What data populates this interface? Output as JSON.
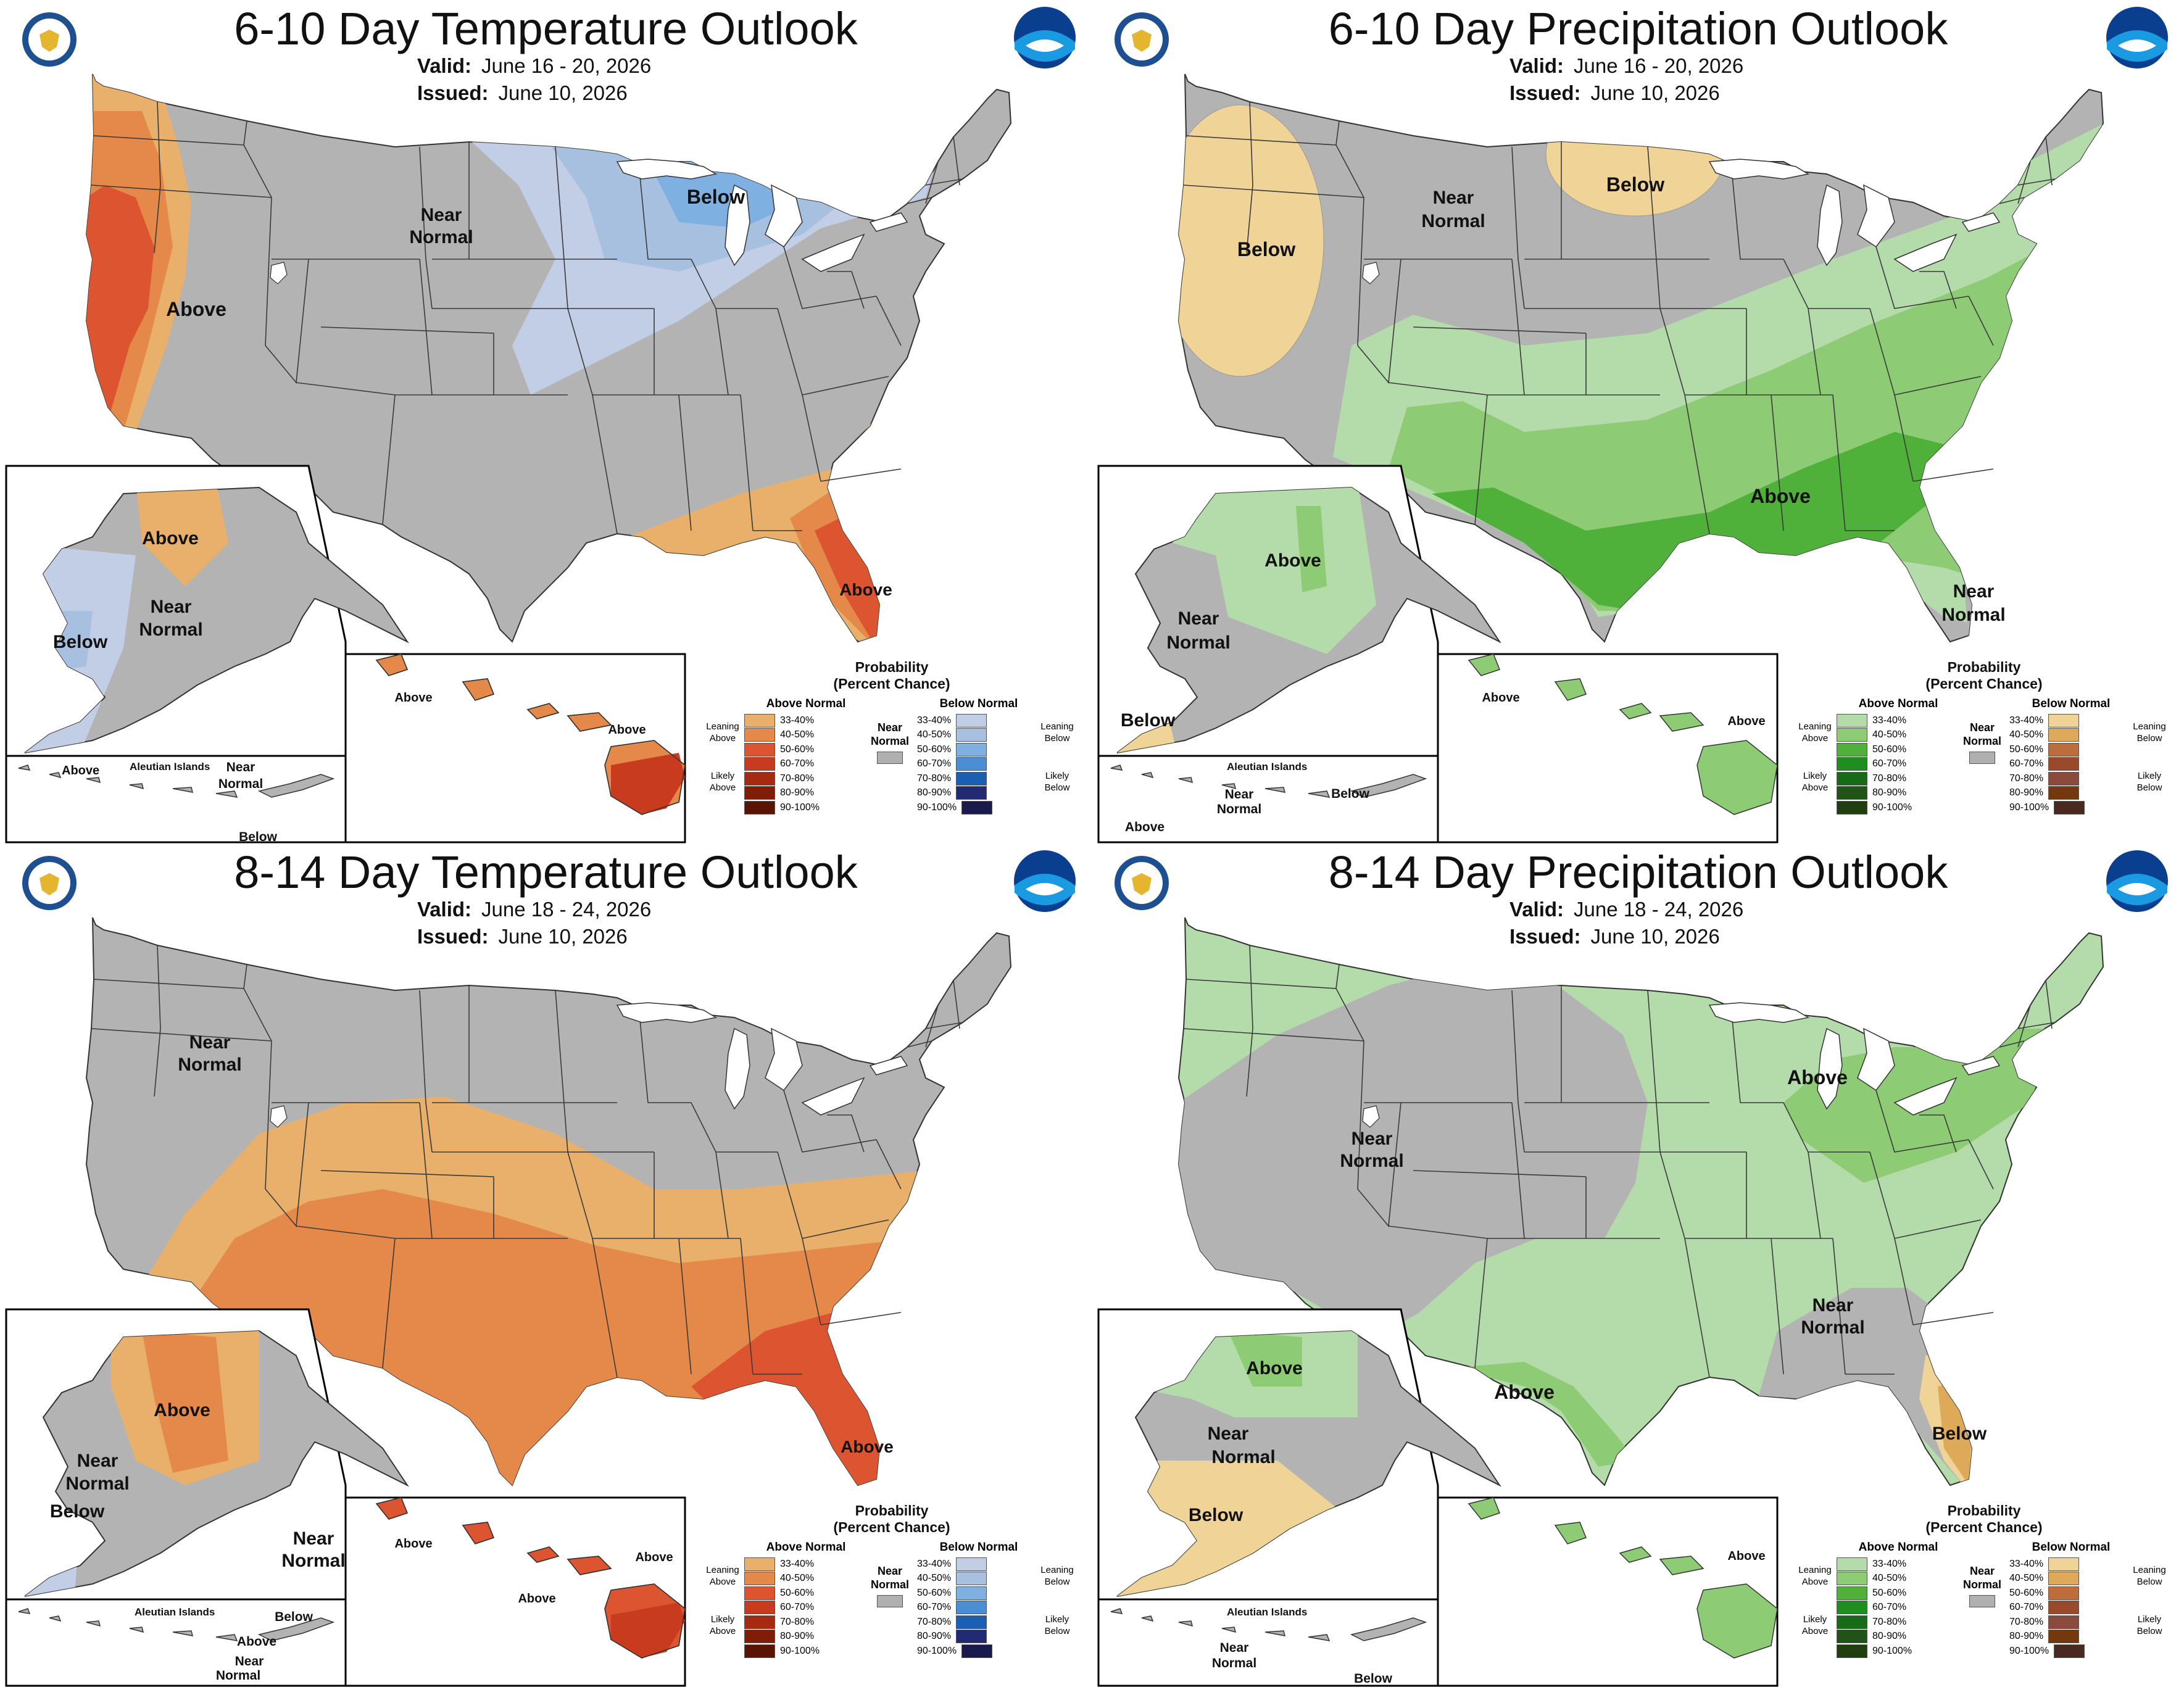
{
  "colors": {
    "near_normal": "#b3b3b3",
    "above_temp": [
      "#e8b06a",
      "#e4894a",
      "#dd5530",
      "#c93b1e",
      "#a52a10",
      "#7f1d08",
      "#5a1404"
    ],
    "below_temp": [
      "#c2cde6",
      "#a7c0e0",
      "#7fb0e2",
      "#4a8ed6",
      "#1a5fb3",
      "#222a72",
      "#1b1a4d"
    ],
    "above_precip": [
      "#b4dcaa",
      "#8dcb74",
      "#4fb13a",
      "#1e8f1e",
      "#176b17",
      "#205416",
      "#1f3f0f"
    ],
    "below_precip": [
      "#f0d396",
      "#deaa5a",
      "#bd6c3c",
      "#9a4a2a",
      "#8c4a3c",
      "#73380e",
      "#4a2a20"
    ],
    "state_lines": "#3a3a3a",
    "water": "#ffffff"
  },
  "panels": [
    {
      "title": "6-10 Day Temperature Outlook",
      "valid_label": "Valid:",
      "valid": "June 16 - 20, 2026",
      "issued_label": "Issued:",
      "issued": "June 10, 2026",
      "map_labels": {
        "main": [
          "Near",
          "Normal",
          "Above",
          "Below",
          "Above"
        ],
        "alaska": [
          "Above",
          "Near",
          "Normal",
          "Below"
        ],
        "aleutian": [
          "Above",
          "Aleutian Islands",
          "Near",
          "Normal",
          "Below"
        ],
        "hawaii": [
          "Above",
          "Above"
        ]
      },
      "legend": {
        "title_line1": "Probability",
        "title_line2": "(Percent Chance)",
        "left_header": "Above Normal",
        "right_header": "Below Normal",
        "left_top_side": "Leaning Above",
        "left_bottom_side": "Likely Above",
        "right_top_side": "Leaning Below",
        "right_bottom_side": "Likely Below",
        "near": "Near Normal",
        "ranges": [
          "33-40%",
          "40-50%",
          "50-60%",
          "60-70%",
          "70-80%",
          "80-90%",
          "90-100%"
        ]
      }
    },
    {
      "title": "6-10 Day Precipitation Outlook",
      "valid_label": "Valid:",
      "valid": "June 16 - 20, 2026",
      "issued_label": "Issued:",
      "issued": "June 10, 2026",
      "map_labels": {
        "main": [
          "Near",
          "Normal",
          "Below",
          "Below",
          "Above",
          "Near",
          "Normal"
        ],
        "alaska": [
          "Above",
          "Near",
          "Normal",
          "Below"
        ],
        "aleutian": [
          "Aleutian Islands",
          "Near",
          "Normal",
          "Below",
          "Above"
        ],
        "hawaii": [
          "Above",
          "Above"
        ]
      },
      "legend": {
        "title_line1": "Probability",
        "title_line2": "(Percent Chance)",
        "left_header": "Above Normal",
        "right_header": "Below Normal",
        "left_top_side": "Leaning Above",
        "left_bottom_side": "Likely Above",
        "right_top_side": "Leaning Below",
        "right_bottom_side": "Likely Below",
        "near": "Near Normal",
        "ranges": [
          "33-40%",
          "40-50%",
          "50-60%",
          "60-70%",
          "70-80%",
          "80-90%",
          "90-100%"
        ]
      }
    },
    {
      "title": "8-14 Day Temperature Outlook",
      "valid_label": "Valid:",
      "valid": "June 18 - 24, 2026",
      "issued_label": "Issued:",
      "issued": "June 10, 2026",
      "map_labels": {
        "main": [
          "Near",
          "Normal",
          "Above"
        ],
        "alaska": [
          "Above",
          "Near",
          "Normal",
          "Below",
          "Near",
          "Normal"
        ],
        "aleutian": [
          "Aleutian Islands",
          "Below",
          "Above",
          "Near",
          "Normal"
        ],
        "hawaii": [
          "Above",
          "Above",
          "Above"
        ]
      },
      "legend": {
        "title_line1": "Probability",
        "title_line2": "(Percent Chance)",
        "left_header": "Above Normal",
        "right_header": "Below Normal",
        "left_top_side": "Leaning Above",
        "left_bottom_side": "Likely Above",
        "right_top_side": "Leaning Below",
        "right_bottom_side": "Likely Below",
        "near": "Near Normal",
        "ranges": [
          "33-40%",
          "40-50%",
          "50-60%",
          "60-70%",
          "70-80%",
          "80-90%",
          "90-100%"
        ]
      }
    },
    {
      "title": "8-14 Day Precipitation Outlook",
      "valid_label": "Valid:",
      "valid": "June 18 - 24, 2026",
      "issued_label": "Issued:",
      "issued": "June 10, 2026",
      "map_labels": {
        "main": [
          "Near",
          "Normal",
          "Above",
          "Above",
          "Near",
          "Normal",
          "Below"
        ],
        "alaska": [
          "Above",
          "Near",
          "Normal",
          "Below"
        ],
        "aleutian": [
          "Aleutian Islands",
          "Near",
          "Normal",
          "Below"
        ],
        "hawaii": [
          "Above"
        ]
      },
      "legend": {
        "title_line1": "Probability",
        "title_line2": "(Percent Chance)",
        "left_header": "Above Normal",
        "right_header": "Below Normal",
        "left_top_side": "Leaning Above",
        "left_bottom_side": "Likely Above",
        "right_top_side": "Leaning Below",
        "right_bottom_side": "Likely Below",
        "near": "Near Normal",
        "ranges": [
          "33-40%",
          "40-50%",
          "50-60%",
          "60-70%",
          "70-80%",
          "80-90%",
          "90-100%"
        ]
      }
    }
  ]
}
